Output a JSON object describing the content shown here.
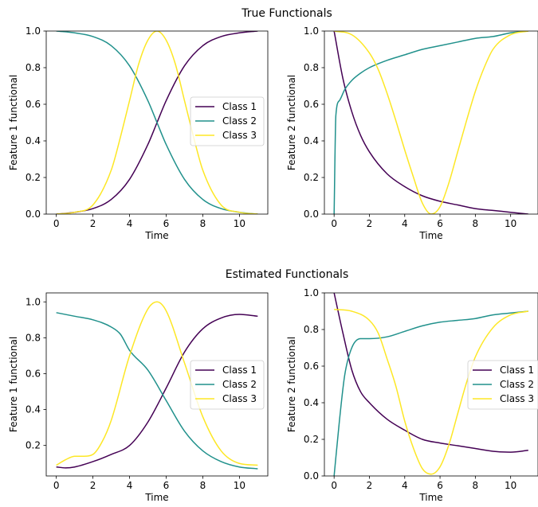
{
  "titles": {
    "top": "True Functionals",
    "bottom": "Estimated Functionals"
  },
  "colors": {
    "class1": "#440154",
    "class2": "#21918c",
    "class3": "#fde725"
  },
  "chart_data": [
    {
      "type": "line",
      "group": "True Functionals",
      "xlabel": "Time",
      "ylabel": "Feature 1 functional",
      "xlim": [
        -0.55,
        11.55
      ],
      "ylim": [
        0.0,
        1.0
      ],
      "xticks": [
        "0",
        "2",
        "4",
        "6",
        "8",
        "10"
      ],
      "yticks": [
        "0.0",
        "0.2",
        "0.4",
        "0.6",
        "0.8",
        "1.0"
      ],
      "legend": "center-right",
      "grid": false,
      "series": [
        {
          "name": "Class 1",
          "x": [
            0,
            1,
            2,
            3,
            4,
            5,
            5.5,
            6,
            7,
            8,
            9,
            10,
            11
          ],
          "y": [
            0.0,
            0.01,
            0.03,
            0.08,
            0.19,
            0.38,
            0.5,
            0.62,
            0.81,
            0.92,
            0.97,
            0.99,
            1.0
          ]
        },
        {
          "name": "Class 2",
          "x": [
            0,
            1,
            2,
            3,
            4,
            5,
            5.5,
            6,
            7,
            8,
            9,
            10,
            11
          ],
          "y": [
            1.0,
            0.99,
            0.97,
            0.92,
            0.81,
            0.62,
            0.5,
            0.38,
            0.19,
            0.08,
            0.03,
            0.01,
            0.0
          ]
        },
        {
          "name": "Class 3",
          "x": [
            0,
            1,
            2,
            3,
            3.5,
            4,
            4.5,
            5,
            5.5,
            6,
            6.5,
            7,
            7.5,
            8,
            9,
            10,
            11
          ],
          "y": [
            0.0,
            0.01,
            0.05,
            0.24,
            0.42,
            0.62,
            0.82,
            0.95,
            1.0,
            0.95,
            0.82,
            0.62,
            0.42,
            0.24,
            0.05,
            0.01,
            0.0
          ]
        }
      ]
    },
    {
      "type": "line",
      "group": "True Functionals",
      "xlabel": "Time",
      "ylabel": "Feature 2 functional",
      "xlim": [
        -0.55,
        11.55
      ],
      "ylim": [
        0.0,
        1.0
      ],
      "xticks": [
        "0",
        "2",
        "4",
        "6",
        "8",
        "10"
      ],
      "yticks": [
        "0.0",
        "0.2",
        "0.4",
        "0.6",
        "0.8",
        "1.0"
      ],
      "grid": false,
      "series": [
        {
          "name": "Class 1",
          "x": [
            0,
            0.5,
            1,
            1.5,
            2,
            3,
            4,
            5,
            6,
            7,
            8,
            9,
            10,
            11
          ],
          "y": [
            1.0,
            0.74,
            0.56,
            0.43,
            0.34,
            0.22,
            0.15,
            0.1,
            0.07,
            0.05,
            0.03,
            0.02,
            0.01,
            0.0
          ]
        },
        {
          "name": "Class 2",
          "x": [
            0,
            0.1,
            0.3,
            0.6,
            1,
            1.5,
            2,
            3,
            4,
            5,
            6,
            7,
            8,
            9,
            10,
            11
          ],
          "y": [
            0.0,
            0.54,
            0.62,
            0.68,
            0.73,
            0.77,
            0.8,
            0.84,
            0.87,
            0.9,
            0.92,
            0.94,
            0.96,
            0.97,
            0.99,
            1.0
          ]
        },
        {
          "name": "Class 3",
          "x": [
            0,
            1,
            2,
            2.5,
            3,
            3.5,
            4,
            4.5,
            5,
            5.5,
            6,
            6.5,
            7,
            7.5,
            8,
            8.5,
            9,
            10,
            11
          ],
          "y": [
            1.0,
            0.98,
            0.88,
            0.79,
            0.66,
            0.51,
            0.35,
            0.2,
            0.06,
            0.0,
            0.04,
            0.17,
            0.34,
            0.51,
            0.67,
            0.8,
            0.9,
            0.98,
            1.0
          ]
        }
      ]
    },
    {
      "type": "line",
      "group": "Estimated Functionals",
      "xlabel": "Time",
      "ylabel": "Feature 1 functional",
      "xlim": [
        -0.55,
        11.55
      ],
      "ylim": [
        0.03,
        1.05
      ],
      "xticks": [
        "0",
        "2",
        "4",
        "6",
        "8",
        "10"
      ],
      "yticks": [
        "0.2",
        "0.4",
        "0.6",
        "0.8",
        "1.0"
      ],
      "legend": "center-right",
      "grid": false,
      "series": [
        {
          "name": "Class 1",
          "x": [
            0,
            0.5,
            1,
            2,
            3,
            4,
            5,
            6,
            7,
            8,
            9,
            10,
            11
          ],
          "y": [
            0.08,
            0.075,
            0.08,
            0.11,
            0.15,
            0.2,
            0.33,
            0.52,
            0.72,
            0.85,
            0.91,
            0.93,
            0.92
          ]
        },
        {
          "name": "Class 2",
          "x": [
            0,
            1,
            2,
            3,
            3.5,
            4,
            5,
            6,
            7,
            8,
            9,
            10,
            11
          ],
          "y": [
            0.94,
            0.92,
            0.9,
            0.86,
            0.82,
            0.73,
            0.62,
            0.45,
            0.28,
            0.17,
            0.11,
            0.08,
            0.07
          ]
        },
        {
          "name": "Class 3",
          "x": [
            0,
            0.5,
            1,
            1.5,
            2,
            2.5,
            3,
            4,
            5,
            5.5,
            6,
            7,
            8,
            9,
            10,
            11
          ],
          "y": [
            0.09,
            0.12,
            0.14,
            0.14,
            0.15,
            0.22,
            0.34,
            0.7,
            0.96,
            1.0,
            0.95,
            0.66,
            0.36,
            0.17,
            0.1,
            0.09
          ]
        }
      ]
    },
    {
      "type": "line",
      "group": "Estimated Functionals",
      "xlabel": "Time",
      "ylabel": "Feature 2 functional",
      "xlim": [
        -0.55,
        11.55
      ],
      "ylim": [
        0.0,
        1.0
      ],
      "xticks": [
        "0",
        "2",
        "4",
        "6",
        "8",
        "10"
      ],
      "yticks": [
        "0.0",
        "0.2",
        "0.4",
        "0.6",
        "0.8",
        "1.0"
      ],
      "legend": "center-right",
      "grid": false,
      "series": [
        {
          "name": "Class 1",
          "x": [
            0,
            0.5,
            1,
            1.5,
            2,
            3,
            4,
            5,
            6,
            7,
            8,
            9,
            10,
            11
          ],
          "y": [
            1.0,
            0.78,
            0.58,
            0.46,
            0.4,
            0.31,
            0.25,
            0.2,
            0.18,
            0.165,
            0.15,
            0.135,
            0.13,
            0.14
          ]
        },
        {
          "name": "Class 2",
          "x": [
            0,
            0.3,
            0.6,
            1,
            1.5,
            2,
            3,
            4,
            5,
            6,
            7,
            8,
            9,
            10,
            11
          ],
          "y": [
            0.0,
            0.3,
            0.55,
            0.7,
            0.75,
            0.75,
            0.76,
            0.79,
            0.82,
            0.84,
            0.85,
            0.86,
            0.88,
            0.89,
            0.9
          ]
        },
        {
          "name": "Class 3",
          "x": [
            0,
            1,
            2,
            2.5,
            3,
            3.5,
            4,
            4.5,
            5,
            5.5,
            6,
            6.5,
            7,
            7.5,
            8,
            9,
            10,
            11
          ],
          "y": [
            0.91,
            0.9,
            0.85,
            0.78,
            0.64,
            0.49,
            0.3,
            0.15,
            0.04,
            0.01,
            0.05,
            0.17,
            0.34,
            0.51,
            0.65,
            0.81,
            0.88,
            0.9
          ]
        }
      ]
    }
  ]
}
